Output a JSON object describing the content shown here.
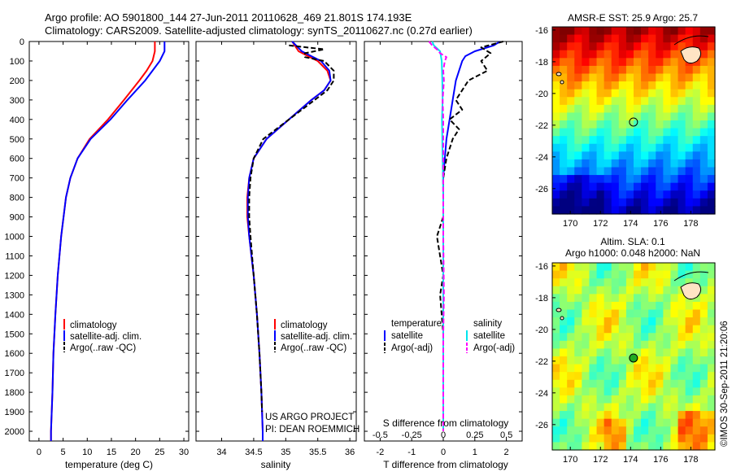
{
  "header": {
    "line1": "Argo profile: AO 5901800_144 27-Jun-2011 20110628_469 21.801S 174.193E",
    "line2": "Climatology: CARS2009. Satellite-adjusted climatology: synTS_20110627.nc (0.27d earlier)"
  },
  "colors": {
    "climatology": "#ff0000",
    "satellite": "#0000ff",
    "argo": "#000000",
    "sat_salinity": "#00e5ee",
    "argo_salinity": "#ff00ff"
  },
  "chart_data": [
    {
      "type": "line",
      "name": "temperature-profile",
      "xlabel": "temperature (deg C)",
      "ylabel": "",
      "xlim": [
        -2,
        31
      ],
      "ylim": [
        2050,
        0
      ],
      "xticks": [
        0,
        5,
        10,
        15,
        20,
        25,
        30
      ],
      "yticks": [
        0,
        100,
        200,
        300,
        400,
        500,
        600,
        700,
        800,
        900,
        1000,
        1100,
        1200,
        1300,
        1400,
        1500,
        1600,
        1700,
        1800,
        1900,
        2000
      ],
      "legend": [
        "climatology",
        "satellite-adj. clim.",
        "Argo(..raw -QC)"
      ],
      "series": [
        {
          "name": "climatology",
          "color": "#ff0000",
          "depth": [
            0,
            50,
            100,
            150,
            200,
            300,
            400,
            500,
            600,
            700,
            800,
            1000,
            1200,
            1400,
            1600,
            1800,
            2000,
            2050
          ],
          "values": [
            24,
            24,
            23.5,
            22.3,
            20.8,
            17.6,
            14.3,
            10.5,
            8.0,
            6.5,
            5.6,
            4.6,
            3.9,
            3.4,
            3.0,
            2.8,
            2.5,
            2.5
          ]
        },
        {
          "name": "satellite-adj. clim.",
          "color": "#0000ff",
          "depth": [
            0,
            50,
            100,
            150,
            200,
            300,
            400,
            500,
            600,
            700,
            800,
            1000,
            1200,
            1400,
            1600,
            1800,
            2000,
            2050
          ],
          "values": [
            26,
            26,
            25,
            23.5,
            22,
            18.3,
            14.8,
            10.7,
            8.0,
            6.5,
            5.6,
            4.6,
            3.9,
            3.4,
            3.0,
            2.8,
            2.5,
            2.5
          ]
        },
        {
          "name": "Argo(..raw -QC)",
          "color": "#000000",
          "depth": [],
          "values": []
        }
      ]
    },
    {
      "type": "line",
      "name": "salinity-profile",
      "xlabel": "salinity",
      "xlim": [
        33.6,
        36.1
      ],
      "ylim": [
        2050,
        0
      ],
      "xticks": [
        34,
        34.5,
        35,
        35.5,
        36
      ],
      "legend": [
        "climatology",
        "satellite-adj. clim.",
        "Argo(..raw -QC)"
      ],
      "series": [
        {
          "name": "climatology",
          "color": "#ff0000",
          "depth": [
            0,
            50,
            100,
            150,
            200,
            250,
            300,
            400,
            500,
            600,
            700,
            800,
            900,
            1000,
            1200,
            1400,
            1600,
            1800,
            2000,
            2050
          ],
          "values": [
            35.1,
            35.2,
            35.5,
            35.65,
            35.7,
            35.6,
            35.4,
            35.05,
            34.7,
            34.5,
            34.43,
            34.4,
            34.4,
            34.43,
            34.5,
            34.55,
            34.59,
            34.62,
            34.64,
            34.64
          ]
        },
        {
          "name": "satellite-adj. clim.",
          "color": "#0000ff",
          "depth": [
            0,
            50,
            100,
            150,
            200,
            250,
            300,
            400,
            500,
            600,
            700,
            800,
            900,
            1000,
            1200,
            1400,
            1600,
            1800,
            2000,
            2050
          ],
          "values": [
            35.1,
            35.25,
            35.55,
            35.68,
            35.7,
            35.6,
            35.4,
            35.05,
            34.7,
            34.5,
            34.43,
            34.41,
            34.41,
            34.43,
            34.5,
            34.55,
            34.59,
            34.62,
            34.64,
            34.64
          ]
        },
        {
          "name": "Argo(..raw -QC)",
          "color": "#000000",
          "depth": [
            20,
            40,
            60,
            80,
            100,
            150,
            200,
            250,
            300,
            400,
            500,
            600,
            700,
            800,
            900,
            1000,
            1200,
            1400,
            1600,
            1800,
            1900
          ],
          "values": [
            35.05,
            35.6,
            35.3,
            35.3,
            35.6,
            35.75,
            35.75,
            35.65,
            35.45,
            35.05,
            34.65,
            34.5,
            34.45,
            34.43,
            34.43,
            34.45,
            34.5,
            34.55,
            34.59,
            34.62,
            34.63
          ]
        }
      ]
    },
    {
      "type": "line",
      "name": "difference-profile",
      "xlabel": "T difference from climatology",
      "xlabel_top": "S difference from climatology",
      "xlim": [
        -2.5,
        2.5
      ],
      "ylim": [
        2050,
        0
      ],
      "xticks": [
        -2,
        -1,
        0,
        1,
        2
      ],
      "xticks_top": [
        -0.5,
        -0.25,
        0,
        0.25,
        0.5
      ],
      "legend_headers": [
        "temperature",
        "salinity"
      ],
      "legend": [
        "satellite",
        "Argo(-adj)",
        "satellite",
        "Argo(-adj)"
      ],
      "series": [
        {
          "name": "satellite",
          "color": "#0000ff",
          "depth": [
            0,
            20,
            50,
            75,
            100,
            150,
            200,
            300,
            400,
            500,
            600,
            700,
            800,
            1000,
            1500,
            2000
          ],
          "values": [
            1.8,
            1.6,
            1.0,
            0.7,
            0.6,
            0.5,
            0.4,
            0.3,
            0.2,
            0.1,
            0.05,
            0,
            0,
            0,
            0,
            0
          ]
        },
        {
          "name": "Argo(-adj)",
          "color": "#000000",
          "depth": [
            0,
            30,
            60,
            100,
            150,
            200,
            300,
            350,
            400,
            450,
            500,
            600,
            700,
            900,
            1000,
            1200,
            1300,
            1500,
            2000
          ],
          "values": [
            1.9,
            1.2,
            1.5,
            1.2,
            1.4,
            0.8,
            0.4,
            0.6,
            0.2,
            0.5,
            0.3,
            0.1,
            0.0,
            0.0,
            -0.2,
            0.0,
            -0.1,
            0.0,
            0.0
          ]
        },
        {
          "name": "satellite",
          "color": "#00e5ee",
          "depth": [
            0,
            20,
            50,
            100,
            200,
            300,
            400,
            500,
            600,
            700,
            800,
            1000,
            1500,
            2000
          ],
          "values": [
            -0.35,
            -0.3,
            -0.1,
            -0.05,
            -0.03,
            -0.02,
            -0.04,
            -0.03,
            -0.02,
            -0.01,
            0,
            0,
            0,
            0
          ]
        },
        {
          "name": "Argo(-adj)",
          "color": "#ff00ff",
          "depth": [
            0,
            20,
            40,
            60,
            80,
            100,
            150,
            200,
            250,
            300,
            400,
            500,
            700,
            1000,
            1300,
            1500,
            2000
          ],
          "values": [
            -0.45,
            -0.35,
            -0.2,
            -0.1,
            0.1,
            0.05,
            0.0,
            0.02,
            0.0,
            -0.02,
            0.0,
            0.0,
            0.0,
            0.0,
            0.02,
            0.0,
            0.0
          ]
        }
      ]
    },
    {
      "type": "heatmap",
      "name": "sst-map",
      "title": "AMSR-E SST: 25.9 Argo: 25.7",
      "xlim": [
        168.8,
        179.6
      ],
      "ylim": [
        -27.6,
        -15.8
      ],
      "xticks": [
        170,
        172,
        174,
        176,
        178
      ],
      "yticks": [
        -16,
        -18,
        -20,
        -22,
        -24,
        -26
      ],
      "marker": {
        "lon": 174.193,
        "lat": -21.801
      }
    },
    {
      "type": "heatmap",
      "name": "sla-map",
      "title_line1": "Altim. SLA: 0.1",
      "title_line2": "Argo h1000: 0.048 h2000: NaN",
      "xlim": [
        168.8,
        179.6
      ],
      "ylim": [
        -27.6,
        -15.8
      ],
      "xticks": [
        170,
        172,
        174,
        176,
        178
      ],
      "yticks": [
        -16,
        -18,
        -20,
        -22,
        -24,
        -26
      ],
      "marker": {
        "lon": 174.193,
        "lat": -21.801
      }
    }
  ],
  "annotations": {
    "project_line1": "US ARGO PROJECT",
    "project_line2": "PI: DEAN ROEMMICH",
    "credit": "©IMOS 30-Sep-2011 21:20:06"
  }
}
